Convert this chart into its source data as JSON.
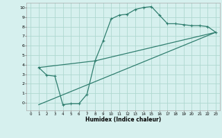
{
  "xlabel": "Humidex (Indice chaleur)",
  "bg_color": "#d6f0ee",
  "line_color": "#2e7d6e",
  "grid_color": "#aed8d0",
  "xlim": [
    -0.5,
    23.5
  ],
  "ylim": [
    -0.8,
    10.5
  ],
  "xticks": [
    0,
    1,
    2,
    3,
    4,
    5,
    6,
    7,
    8,
    9,
    10,
    11,
    12,
    13,
    14,
    15,
    16,
    17,
    18,
    19,
    20,
    21,
    22,
    23
  ],
  "yticks": [
    0,
    1,
    2,
    3,
    4,
    5,
    6,
    7,
    8,
    9,
    10
  ],
  "line1_x": [
    1,
    2,
    3,
    4,
    5,
    6,
    7,
    8,
    9,
    10,
    11,
    12,
    13,
    14,
    15,
    16,
    17,
    18,
    19,
    20,
    21,
    22,
    23
  ],
  "line1_y": [
    3.7,
    2.9,
    2.8,
    -0.2,
    -0.1,
    -0.1,
    0.9,
    4.4,
    6.5,
    8.8,
    9.2,
    9.3,
    9.8,
    10.0,
    10.1,
    9.2,
    8.3,
    8.3,
    8.2,
    8.1,
    8.1,
    8.0,
    7.4
  ],
  "line2_x": [
    1,
    8,
    23
  ],
  "line2_y": [
    3.7,
    4.4,
    7.4
  ],
  "line3_x": [
    1,
    23
  ],
  "line3_y": [
    -0.2,
    7.4
  ]
}
